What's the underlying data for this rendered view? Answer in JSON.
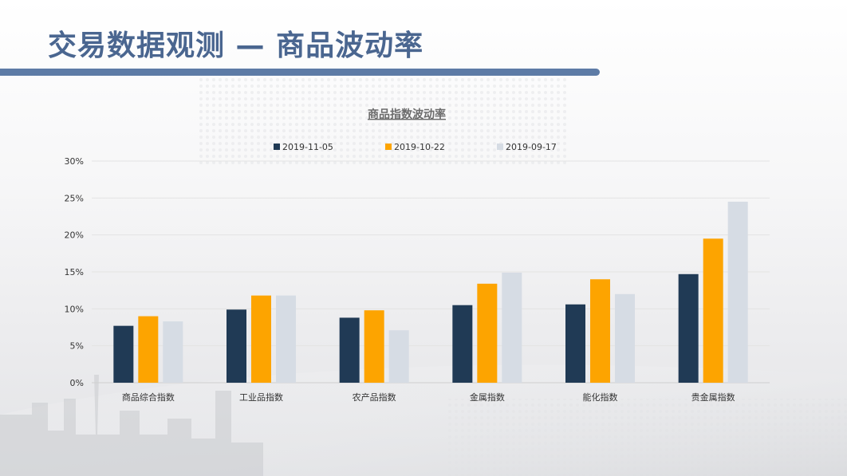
{
  "slide": {
    "title": "交易数据观测 — 商品波动率"
  },
  "chart_data": {
    "type": "bar",
    "title": "商品指数波动率",
    "categories": [
      "商品综合指数",
      "工业品指数",
      "农产品指数",
      "金属指数",
      "能化指数",
      "贵金属指数"
    ],
    "series": [
      {
        "name": "2019-11-05",
        "color": "#203a55",
        "values": [
          7.7,
          9.9,
          8.8,
          10.5,
          10.6,
          14.7
        ]
      },
      {
        "name": "2019-10-22",
        "color": "#fda400",
        "values": [
          9.0,
          11.8,
          9.8,
          13.4,
          14.0,
          19.5
        ]
      },
      {
        "name": "2019-09-17",
        "color": "#d6dce4",
        "values": [
          8.3,
          11.8,
          7.1,
          14.9,
          12.0,
          24.5
        ]
      }
    ],
    "yticks": [
      "0%",
      "5%",
      "10%",
      "15%",
      "20%",
      "25%",
      "30%"
    ],
    "ylim": [
      0,
      30
    ],
    "grid": true,
    "legend": "top"
  }
}
